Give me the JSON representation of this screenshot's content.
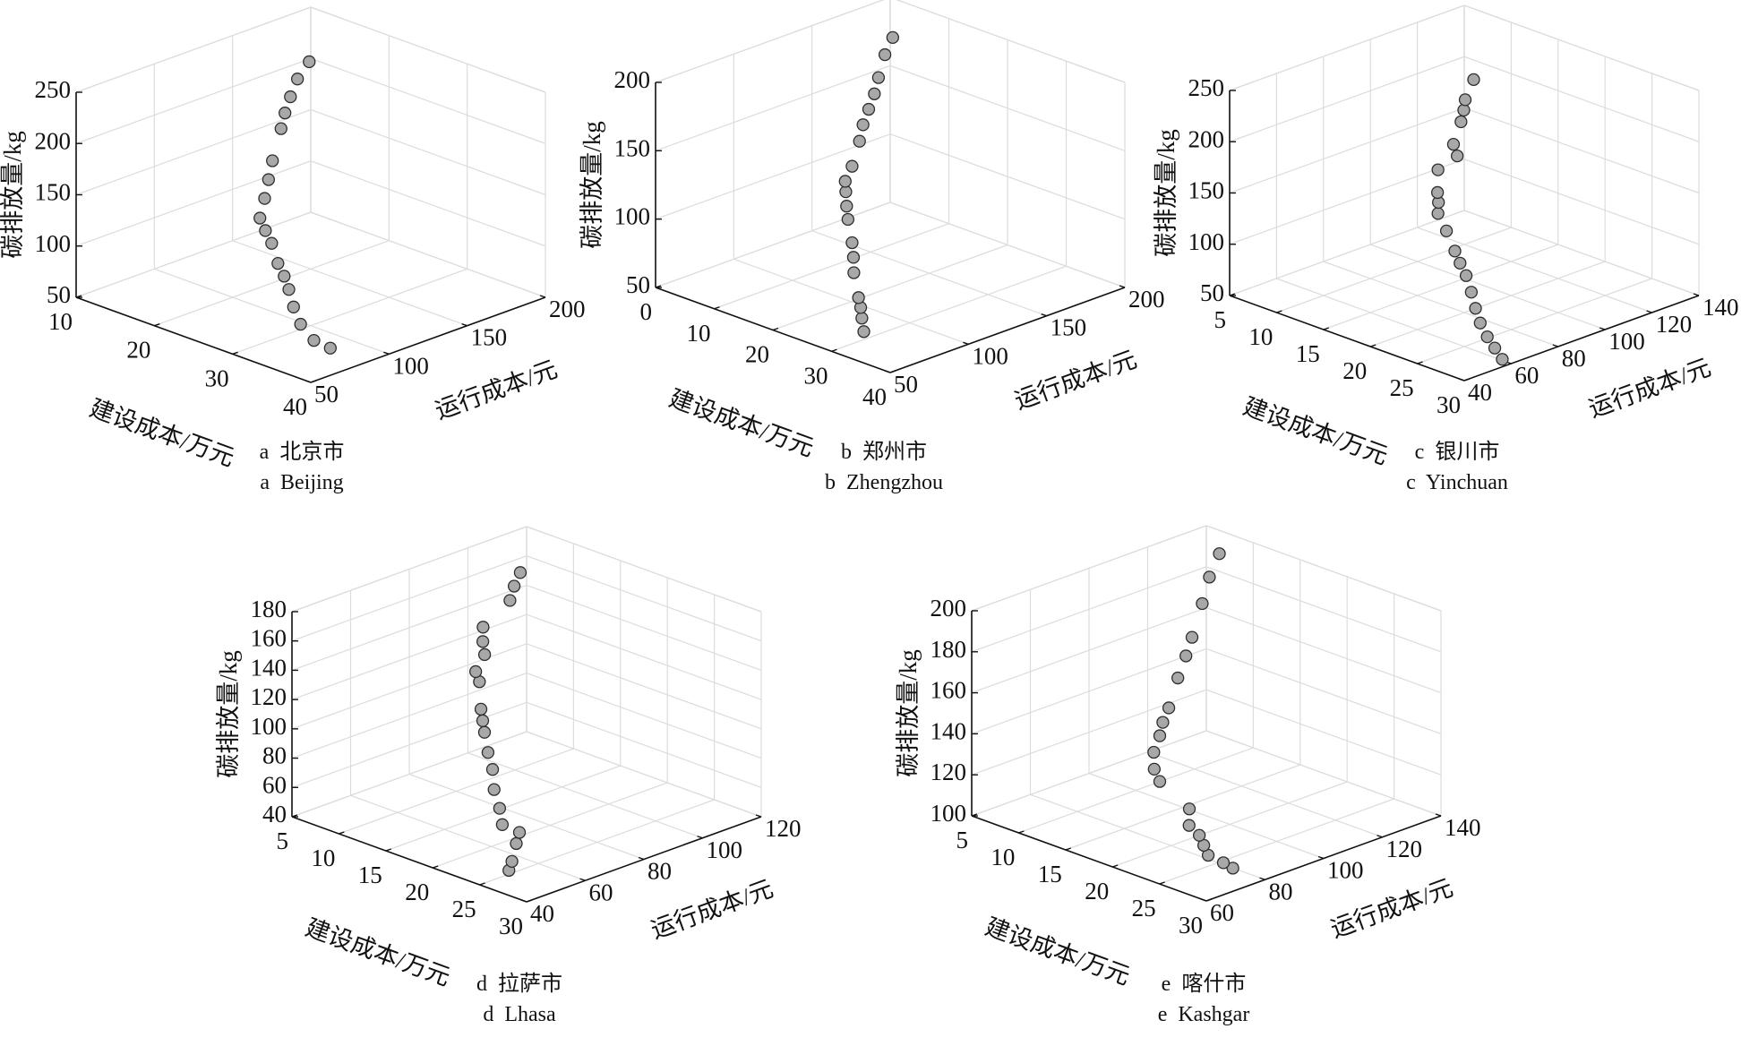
{
  "chart_data": [
    {
      "type": "scatter3d",
      "id": "a",
      "label": "a",
      "city_cn": "北京市",
      "city_en": "Beijing",
      "xlabel": "建设成本/万元",
      "ylabel": "运行成本/元",
      "zlabel": "碳排放量/kg",
      "xlim": [
        10,
        40
      ],
      "ylim": [
        50,
        200
      ],
      "zlim": [
        50,
        250
      ],
      "xticks": [
        10,
        20,
        30,
        40
      ],
      "yticks": [
        50,
        100,
        150,
        200
      ],
      "zticks": [
        50,
        100,
        150,
        200,
        250
      ],
      "grid": true,
      "points": [
        [
          38.1,
          72,
          66
        ],
        [
          36.6,
          69,
          71
        ],
        [
          34.7,
          70,
          81
        ],
        [
          33.2,
          73,
          92
        ],
        [
          31.8,
          77,
          103
        ],
        [
          30.6,
          80,
          111
        ],
        [
          29.4,
          82,
          119
        ],
        [
          27.8,
          86,
          132
        ],
        [
          26.6,
          88,
          140
        ],
        [
          25.5,
          90,
          148
        ],
        [
          24.5,
          98,
          160
        ],
        [
          23.6,
          105,
          172
        ],
        [
          22.7,
          112,
          184
        ],
        [
          21.2,
          125,
          204
        ],
        [
          20.5,
          131,
          214
        ],
        [
          19.8,
          138,
          224
        ],
        [
          19.1,
          146,
          235
        ],
        [
          18.8,
          155,
          246
        ]
      ]
    },
    {
      "type": "scatter3d",
      "id": "b",
      "label": "b",
      "city_cn": "郑州市",
      "city_en": "Zhengzhou",
      "xlabel": "建设成本/万元",
      "ylabel": "运行成本/元",
      "zlabel": "碳排放量/kg",
      "xlim": [
        0,
        40
      ],
      "ylim": [
        50,
        200
      ],
      "zlim": [
        50,
        200
      ],
      "xticks": [
        0,
        10,
        20,
        30,
        40
      ],
      "yticks": [
        50,
        100,
        150,
        200
      ],
      "zticks": [
        50,
        100,
        150,
        200
      ],
      "grid": true,
      "points": [
        [
          30.7,
          68,
          58
        ],
        [
          29.3,
          72,
          64
        ],
        [
          28.3,
          75,
          69
        ],
        [
          27.4,
          77,
          74
        ],
        [
          25.0,
          83,
          86
        ],
        [
          23.6,
          88,
          93
        ],
        [
          22.3,
          92,
          100
        ],
        [
          20.0,
          98,
          111
        ],
        [
          18.7,
          102,
          117
        ],
        [
          17.5,
          106,
          124
        ],
        [
          16.6,
          109,
          129
        ],
        [
          15.9,
          116,
          136
        ],
        [
          14.5,
          126,
          148
        ],
        [
          13.5,
          132,
          156
        ],
        [
          12.6,
          139,
          163
        ],
        [
          11.7,
          146,
          170
        ],
        [
          10.8,
          152,
          178
        ],
        [
          9.5,
          161,
          189
        ],
        [
          8.7,
          169,
          197
        ]
      ]
    },
    {
      "type": "scatter3d",
      "id": "c",
      "label": "c",
      "city_cn": "银川市",
      "city_en": "Yinchuan",
      "xlabel": "建设成本/万元",
      "ylabel": "运行成本/元",
      "zlabel": "碳排放量/kg",
      "xlim": [
        5,
        30
      ],
      "ylim": [
        40,
        140
      ],
      "zlim": [
        50,
        250
      ],
      "xticks": [
        5,
        10,
        15,
        20,
        25,
        30
      ],
      "yticks": [
        40,
        60,
        80,
        100,
        120,
        140
      ],
      "zticks": [
        50,
        100,
        150,
        200,
        250
      ],
      "grid": true,
      "points": [
        [
          29.8,
          57,
          56
        ],
        [
          28.5,
          59,
          61
        ],
        [
          27.2,
          61,
          66
        ],
        [
          25.7,
          64,
          72
        ],
        [
          24.2,
          68,
          78
        ],
        [
          22.5,
          73,
          84
        ],
        [
          20.7,
          78,
          90
        ],
        [
          19.3,
          81,
          95
        ],
        [
          18.0,
          84,
          100
        ],
        [
          16.1,
          88,
          110
        ],
        [
          16.7,
          82,
          134
        ],
        [
          16.0,
          85,
          140
        ],
        [
          15.4,
          87,
          146
        ],
        [
          14.2,
          92,
          160
        ],
        [
          16.5,
          91,
          182
        ],
        [
          16.1,
          91,
          192
        ],
        [
          15.9,
          95,
          210
        ],
        [
          15.7,
          97,
          219
        ],
        [
          15.6,
          98,
          228
        ],
        [
          15.5,
          102,
          244
        ]
      ]
    },
    {
      "type": "scatter3d",
      "id": "d",
      "label": "d",
      "city_cn": "拉萨市",
      "city_en": "Lhasa",
      "xlabel": "建设成本/万元",
      "ylabel": "运行成本/元",
      "zlabel": "碳排放量/kg",
      "xlim": [
        5,
        30
      ],
      "ylim": [
        40,
        120
      ],
      "zlim": [
        40,
        180
      ],
      "xticks": [
        5,
        10,
        15,
        20,
        25,
        30
      ],
      "yticks": [
        40,
        60,
        80,
        100,
        120
      ],
      "zticks": [
        40,
        60,
        80,
        100,
        120,
        140,
        160,
        180
      ],
      "grid": true,
      "points": [
        [
          25.3,
          49,
          44
        ],
        [
          25.0,
          51,
          48
        ],
        [
          23.9,
          56,
          54
        ],
        [
          23.3,
          59,
          58
        ],
        [
          22.1,
          57,
          62
        ],
        [
          21.5,
          58,
          71
        ],
        [
          20.6,
          59,
          81
        ],
        [
          19.5,
          62,
          90
        ],
        [
          18.7,
          63,
          99
        ],
        [
          17.7,
          65,
          109
        ],
        [
          17.2,
          66,
          115
        ],
        [
          16.7,
          67,
          121
        ],
        [
          15.6,
          70,
          135
        ],
        [
          15.2,
          70,
          141
        ],
        [
          14.9,
          74,
          149
        ],
        [
          14.4,
          75,
          156
        ],
        [
          13.8,
          77,
          163
        ],
        [
          12.6,
          90,
          169
        ],
        [
          11.8,
          94,
          174
        ],
        [
          11.2,
          98,
          179
        ]
      ]
    },
    {
      "type": "scatter3d",
      "id": "e",
      "label": "e",
      "city_cn": "喀什市",
      "city_en": "Kashgar",
      "xlabel": "建设成本/万元",
      "ylabel": "运行成本/元",
      "zlabel": "碳排放量/kg",
      "xlim": [
        5,
        30
      ],
      "ylim": [
        60,
        140
      ],
      "zlim": [
        100,
        200
      ],
      "xticks": [
        5,
        10,
        15,
        20,
        25,
        30
      ],
      "yticks": [
        60,
        80,
        100,
        120,
        140
      ],
      "zticks": [
        100,
        120,
        140,
        160,
        180,
        200
      ],
      "grid": true,
      "points": [
        [
          27.2,
          78,
          102
        ],
        [
          26.5,
          77,
          104
        ],
        [
          25.2,
          76,
          106
        ],
        [
          24.1,
          78,
          108
        ],
        [
          23.0,
          80,
          110
        ],
        [
          21.6,
          81,
          112
        ],
        [
          21.0,
          83,
          118
        ],
        [
          16.6,
          87,
          122
        ],
        [
          15.7,
          88,
          126
        ],
        [
          14.4,
          92,
          130
        ],
        [
          14.1,
          95,
          136
        ],
        [
          13.8,
          97,
          141
        ],
        [
          13.5,
          100,
          146
        ],
        [
          12.9,
          105,
          157
        ],
        [
          12.2,
          110,
          164
        ],
        [
          11.6,
          114,
          170
        ],
        [
          10.5,
          121,
          181
        ],
        [
          9.7,
          126,
          190
        ],
        [
          9.2,
          131,
          198
        ]
      ]
    }
  ],
  "colors": {
    "marker_fill": "#a8a8a8",
    "marker_edge": "#2e2e2e",
    "grid": "#dcdcdc",
    "axis": "#111111"
  }
}
